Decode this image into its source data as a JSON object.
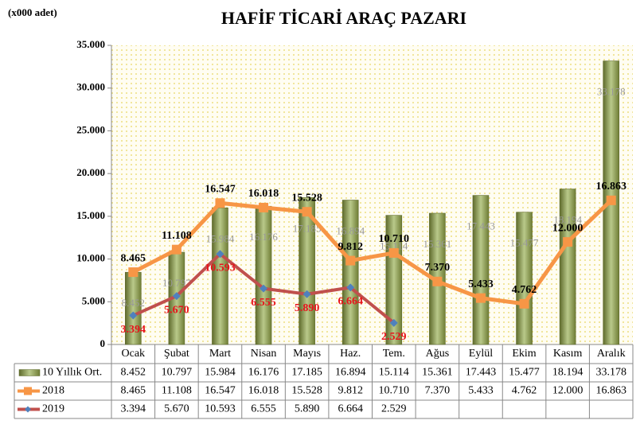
{
  "chart_data": {
    "type": "bar-line",
    "title": "HAFİF TİCARİ ARAÇ PAZARI",
    "unit_label": "(x000 adet)",
    "categories": [
      "Ocak",
      "Şubat",
      "Mart",
      "Nisan",
      "Mayıs",
      "Haz.",
      "Tem.",
      "Ağus",
      "Eylül",
      "Ekim",
      "Kasım",
      "Aralık"
    ],
    "series": [
      {
        "name": "10 Yıllık Ort.",
        "type": "bar",
        "color": "#8a9a4a",
        "values": [
          8452,
          10797,
          15984,
          16176,
          17185,
          16894,
          15114,
          15361,
          17443,
          15477,
          18194,
          33178
        ],
        "value_labels": [
          "8.452",
          "10.797",
          "15.984",
          "16.176",
          "17.185",
          "16.894",
          "15.114",
          "15.361",
          "17.443",
          "15.477",
          "18.194",
          "33.178"
        ]
      },
      {
        "name": "2018",
        "type": "line",
        "color": "#f79646",
        "marker_color": "#f79646",
        "values": [
          8465,
          11108,
          16547,
          16018,
          15528,
          9812,
          10710,
          7370,
          5433,
          4762,
          12000,
          16863
        ],
        "value_labels": [
          "8.465",
          "11.108",
          "16.547",
          "16.018",
          "15.528",
          "9.812",
          "10.710",
          "7.370",
          "5.433",
          "4.762",
          "12.000",
          "16.863"
        ]
      },
      {
        "name": "2019",
        "type": "line",
        "color": "#c0504d",
        "marker_color": "#4f81bd",
        "values": [
          3394,
          5670,
          10593,
          6555,
          5890,
          6664,
          2529,
          null,
          null,
          null,
          null,
          null
        ],
        "value_labels": [
          "3.394",
          "5.670",
          "10.593",
          "6.555",
          "5.890",
          "6.664",
          "2.529",
          null,
          null,
          null,
          null,
          null
        ]
      }
    ],
    "ylim": [
      0,
      35000
    ],
    "yticks": [
      0,
      {
        "value": 5000,
        "label": "5.000"
      },
      {
        "value": 10000,
        "label": "10.000"
      },
      {
        "value": 15000,
        "label": "15.000"
      },
      {
        "value": 20000,
        "label": "20.000"
      },
      {
        "value": 25000,
        "label": "25.000"
      },
      {
        "value": 30000,
        "label": "30.000"
      },
      {
        "value": 35000,
        "label": "35.000"
      }
    ]
  }
}
